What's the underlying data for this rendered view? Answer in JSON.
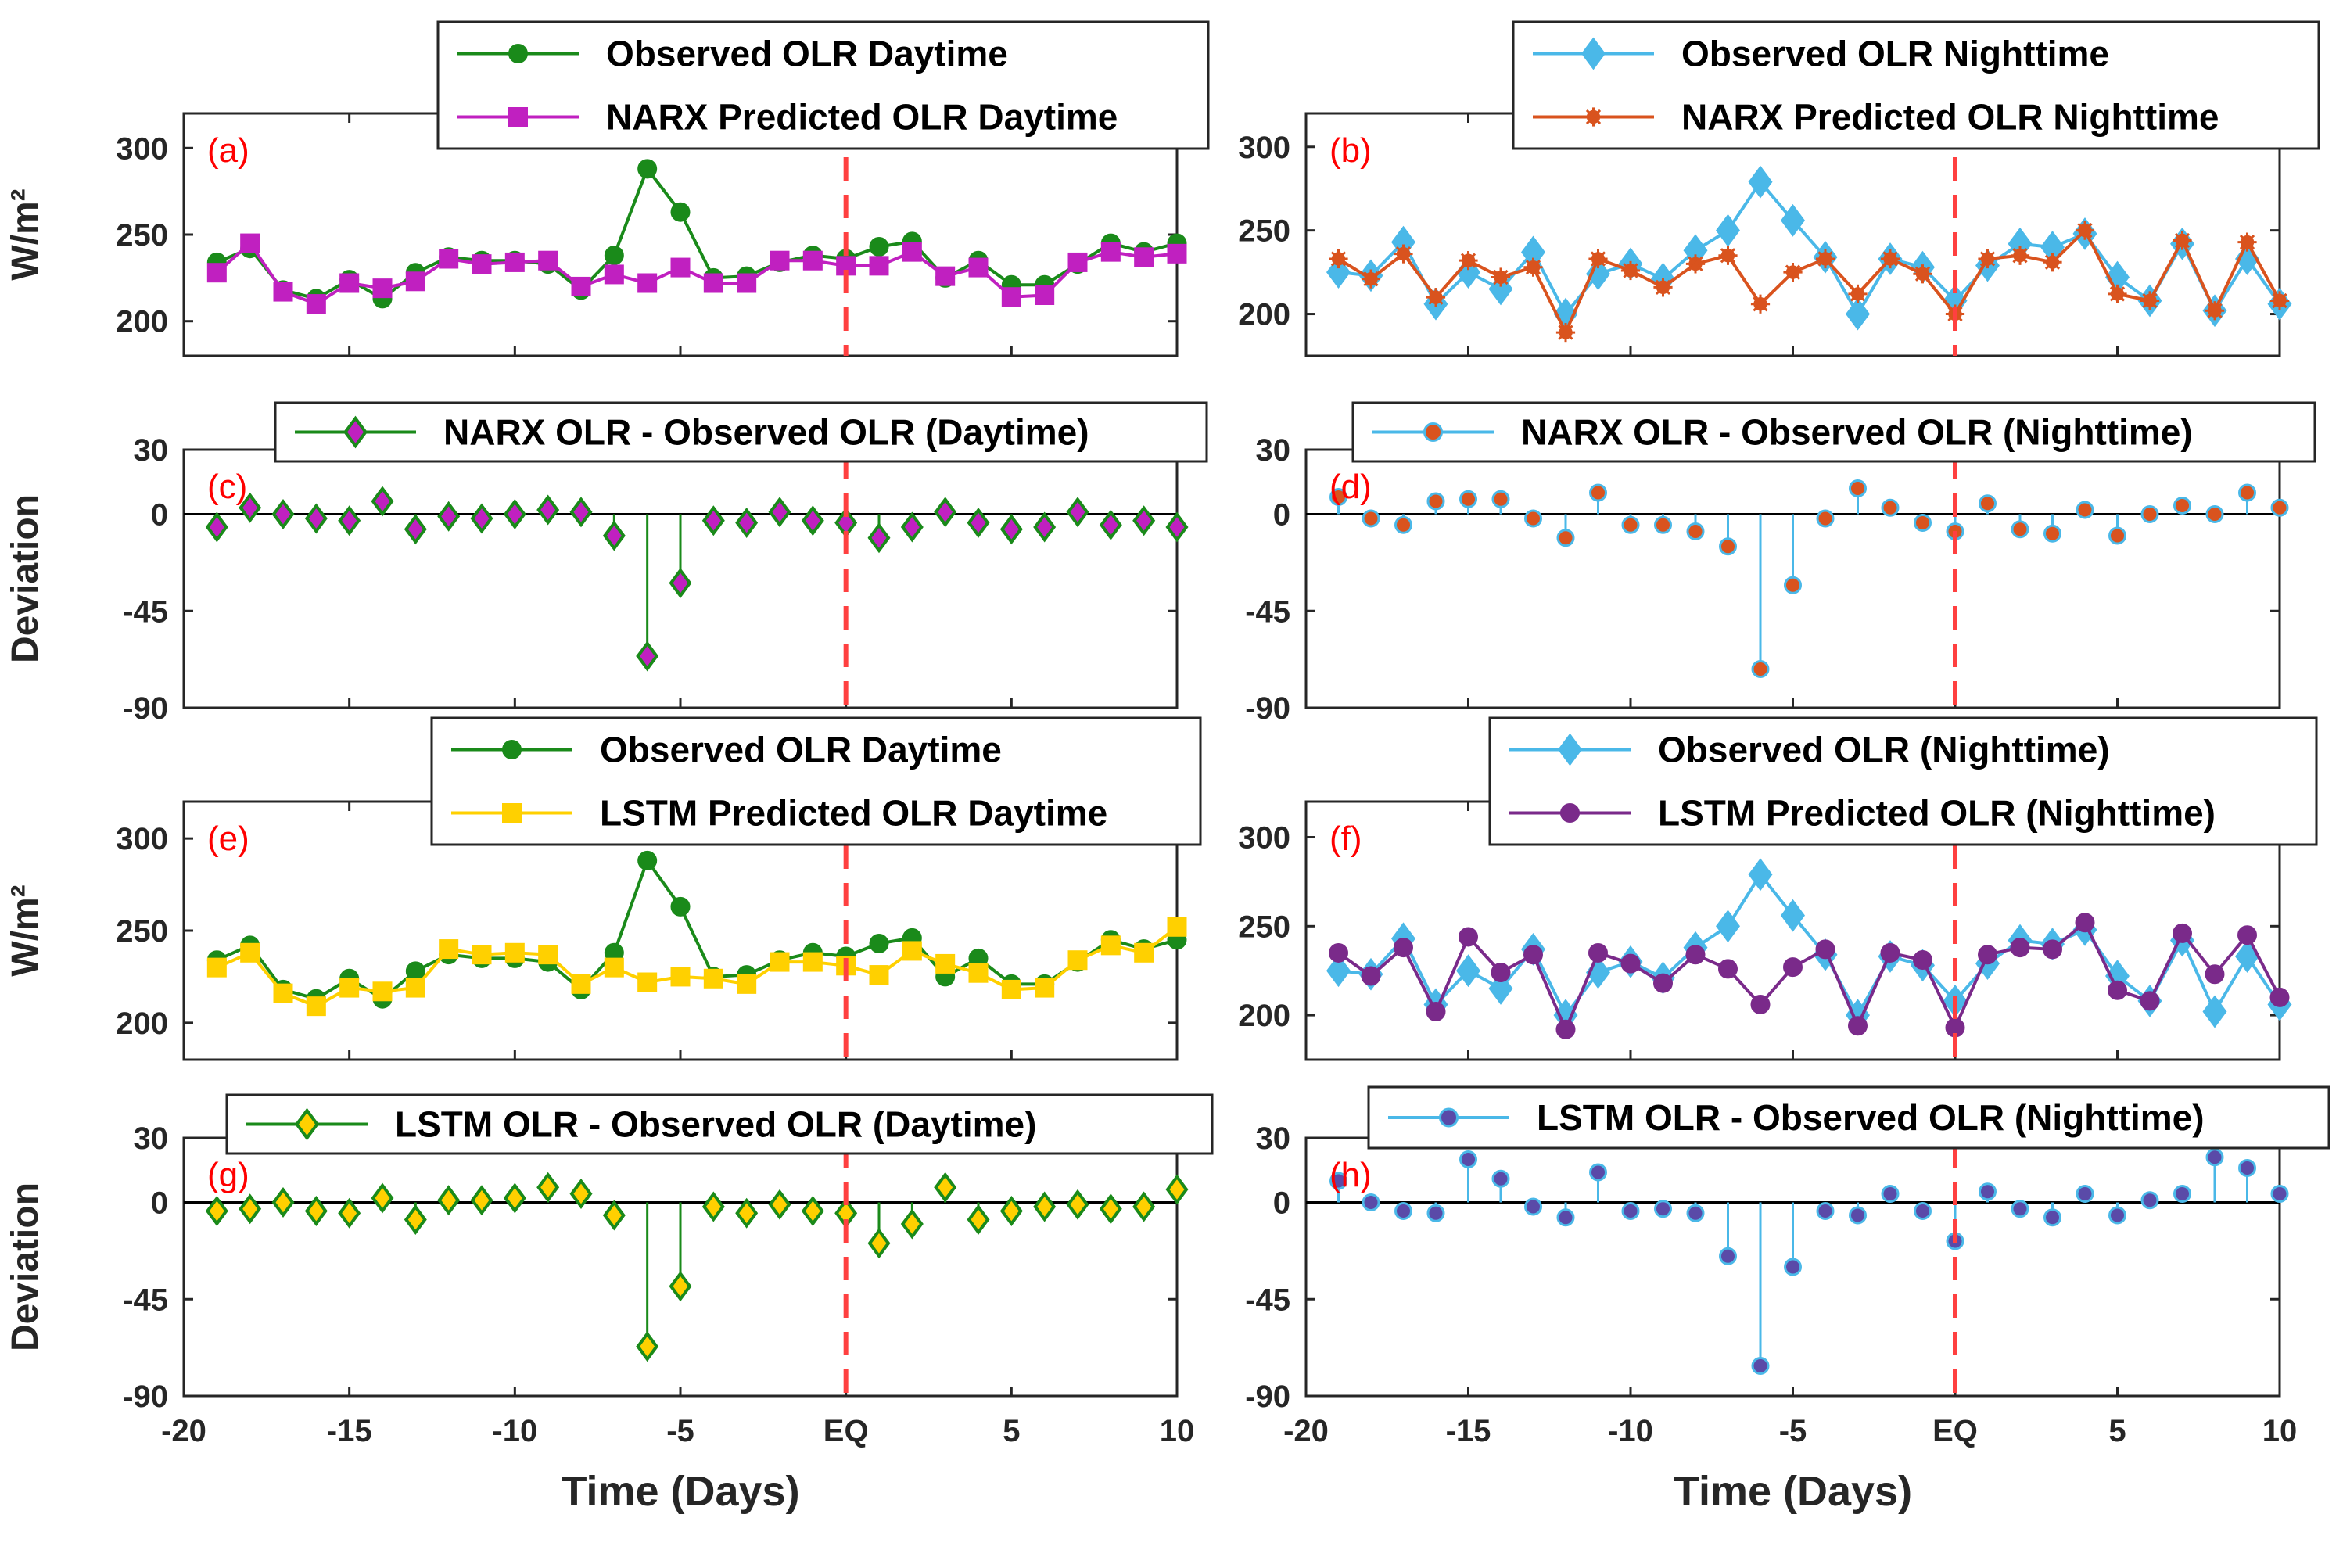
{
  "chart_data": [
    {
      "id": "a",
      "type": "line",
      "panel_label": "(a)",
      "ylabel": "W/m²",
      "ylim": [
        180,
        320
      ],
      "yticks": [
        {
          "v": 300,
          "t": "300"
        },
        {
          "v": 250,
          "t": "250"
        },
        {
          "v": 200,
          "t": "200"
        }
      ],
      "show_xticks": false,
      "series": [
        {
          "name": "Observed OLR Daytime",
          "color": "#1a8a1a",
          "marker": "circle",
          "x": [
            -19,
            -18,
            -17,
            -16,
            -15,
            -14,
            -13,
            -12,
            -11,
            -10,
            -9,
            -8,
            -7,
            -6,
            -5,
            -4,
            -3,
            -2,
            -1,
            0,
            1,
            2,
            3,
            4,
            5,
            6,
            7,
            8,
            9,
            10
          ],
          "values": [
            234,
            242,
            218,
            213,
            224,
            213,
            228,
            237,
            235,
            235,
            233,
            218,
            238,
            288,
            263,
            225,
            226,
            234,
            238,
            236,
            243,
            246,
            225,
            235,
            221,
            221,
            233,
            245,
            240,
            245
          ]
        },
        {
          "name": "NARX Predicted OLR Daytime",
          "color": "#c020c0",
          "marker": "square",
          "x": [
            -19,
            -18,
            -17,
            -16,
            -15,
            -14,
            -13,
            -12,
            -11,
            -10,
            -9,
            -8,
            -7,
            -6,
            -5,
            -4,
            -3,
            -2,
            -1,
            0,
            1,
            2,
            3,
            4,
            5,
            6,
            7,
            8,
            9,
            10
          ],
          "values": [
            228,
            245,
            217,
            210,
            222,
            219,
            223,
            236,
            233,
            234,
            235,
            220,
            227,
            222,
            231,
            222,
            222,
            235,
            235,
            232,
            232,
            240,
            226,
            231,
            214,
            215,
            234,
            240,
            237,
            239
          ]
        }
      ]
    },
    {
      "id": "b",
      "type": "line",
      "panel_label": "(b)",
      "ylabel": "",
      "ylim": [
        175,
        320
      ],
      "yticks": [
        {
          "v": 300,
          "t": "300"
        },
        {
          "v": 250,
          "t": "250"
        },
        {
          "v": 200,
          "t": "200"
        }
      ],
      "show_xticks": false,
      "series": [
        {
          "name": "Observed OLR Nighttime",
          "color": "#4ab8e8",
          "marker": "diamond",
          "x": [
            -19,
            -18,
            -17,
            -16,
            -15,
            -14,
            -13,
            -12,
            -11,
            -10,
            -9,
            -8,
            -7,
            -6,
            -5,
            -4,
            -3,
            -2,
            -1,
            0,
            1,
            2,
            3,
            4,
            5,
            6,
            7,
            8,
            9,
            10
          ],
          "values": [
            225,
            223,
            243,
            206,
            225,
            215,
            237,
            200,
            224,
            230,
            221,
            238,
            250,
            279,
            256,
            234,
            200,
            233,
            228,
            208,
            229,
            242,
            240,
            248,
            222,
            208,
            242,
            202,
            233,
            206
          ]
        },
        {
          "name": "NARX Predicted OLR Nighttime",
          "color": "#d9531e",
          "marker": "asterisk",
          "x": [
            -19,
            -18,
            -17,
            -16,
            -15,
            -14,
            -13,
            -12,
            -11,
            -10,
            -9,
            -8,
            -7,
            -6,
            -5,
            -4,
            -3,
            -2,
            -1,
            0,
            1,
            2,
            3,
            4,
            5,
            6,
            7,
            8,
            9,
            10
          ],
          "values": [
            233,
            221,
            236,
            210,
            232,
            222,
            228,
            189,
            233,
            226,
            216,
            230,
            235,
            206,
            225,
            233,
            212,
            233,
            224,
            200,
            233,
            235,
            231,
            250,
            212,
            208,
            244,
            202,
            243,
            208
          ]
        }
      ]
    },
    {
      "id": "c",
      "type": "stem",
      "panel_label": "(c)",
      "ylabel": "Deviation",
      "ylim": [
        -90,
        30
      ],
      "yticks": [
        {
          "v": 30,
          "t": "30"
        },
        {
          "v": 0,
          "t": "0"
        },
        {
          "v": -45,
          "t": "-45"
        },
        {
          "v": -90,
          "t": "-90"
        }
      ],
      "show_xticks": false,
      "series": [
        {
          "name": "NARX OLR - Observed OLR (Daytime)",
          "color": "#1a8a1a",
          "marker": "diamond",
          "fill": "#c020c0",
          "x": [
            -19,
            -18,
            -17,
            -16,
            -15,
            -14,
            -13,
            -12,
            -11,
            -10,
            -9,
            -8,
            -7,
            -6,
            -5,
            -4,
            -3,
            -2,
            -1,
            0,
            1,
            2,
            3,
            4,
            5,
            6,
            7,
            8,
            9,
            10
          ],
          "values": [
            -6,
            3,
            0,
            -2,
            -3,
            6,
            -7,
            -1,
            -2,
            0,
            2,
            1,
            -10,
            -66,
            -32,
            -3,
            -4,
            1,
            -3,
            -4,
            -11,
            -6,
            1,
            -4,
            -7,
            -6,
            1,
            -5,
            -3,
            -6
          ]
        }
      ]
    },
    {
      "id": "d",
      "type": "stem",
      "panel_label": "(d)",
      "ylabel": "",
      "ylim": [
        -90,
        30
      ],
      "yticks": [
        {
          "v": 30,
          "t": "30"
        },
        {
          "v": 0,
          "t": "0"
        },
        {
          "v": -45,
          "t": "-45"
        },
        {
          "v": -90,
          "t": "-90"
        }
      ],
      "show_xticks": false,
      "series": [
        {
          "name": "NARX OLR - Observed OLR (Nighttime)",
          "color": "#4ab8e8",
          "marker": "circle",
          "fill": "#d9531e",
          "x": [
            -19,
            -18,
            -17,
            -16,
            -15,
            -14,
            -13,
            -12,
            -11,
            -10,
            -9,
            -8,
            -7,
            -6,
            -5,
            -4,
            -3,
            -2,
            -1,
            0,
            1,
            2,
            3,
            4,
            5,
            6,
            7,
            8,
            9,
            10
          ],
          "values": [
            8,
            -2,
            -5,
            6,
            7,
            7,
            -2,
            -11,
            10,
            -5,
            -5,
            -8,
            -15,
            -72,
            -33,
            -2,
            12,
            3,
            -4,
            -8,
            5,
            -7,
            -9,
            2,
            -10,
            0,
            4,
            0,
            10,
            3
          ]
        }
      ]
    },
    {
      "id": "e",
      "type": "line",
      "panel_label": "(e)",
      "ylabel": "W/m²",
      "ylim": [
        180,
        320
      ],
      "yticks": [
        {
          "v": 300,
          "t": "300"
        },
        {
          "v": 250,
          "t": "250"
        },
        {
          "v": 200,
          "t": "200"
        }
      ],
      "show_xticks": false,
      "series": [
        {
          "name": "Observed OLR Daytime",
          "color": "#1a8a1a",
          "marker": "circle",
          "x": [
            -19,
            -18,
            -17,
            -16,
            -15,
            -14,
            -13,
            -12,
            -11,
            -10,
            -9,
            -8,
            -7,
            -6,
            -5,
            -4,
            -3,
            -2,
            -1,
            0,
            1,
            2,
            3,
            4,
            5,
            6,
            7,
            8,
            9,
            10
          ],
          "values": [
            234,
            242,
            218,
            213,
            224,
            213,
            228,
            237,
            235,
            235,
            233,
            218,
            238,
            288,
            263,
            225,
            226,
            234,
            238,
            236,
            243,
            246,
            225,
            235,
            221,
            221,
            233,
            245,
            240,
            245
          ]
        },
        {
          "name": "LSTM Predicted OLR Daytime",
          "color": "#ffd000",
          "marker": "square",
          "x": [
            -19,
            -18,
            -17,
            -16,
            -15,
            -14,
            -13,
            -12,
            -11,
            -10,
            -9,
            -8,
            -7,
            -6,
            -5,
            -4,
            -3,
            -2,
            -1,
            0,
            1,
            2,
            3,
            4,
            5,
            6,
            7,
            8,
            9,
            10
          ],
          "values": [
            230,
            238,
            216,
            209,
            219,
            217,
            219,
            240,
            237,
            238,
            237,
            221,
            230,
            222,
            225,
            224,
            221,
            233,
            233,
            231,
            226,
            239,
            232,
            227,
            218,
            219,
            234,
            242,
            238,
            252
          ]
        }
      ]
    },
    {
      "id": "f",
      "type": "line",
      "panel_label": "(f)",
      "ylabel": "",
      "ylim": [
        175,
        320
      ],
      "yticks": [
        {
          "v": 300,
          "t": "300"
        },
        {
          "v": 250,
          "t": "250"
        },
        {
          "v": 200,
          "t": "200"
        }
      ],
      "show_xticks": false,
      "series": [
        {
          "name": "Observed OLR (Nighttime)",
          "color": "#4ab8e8",
          "marker": "diamond",
          "x": [
            -19,
            -18,
            -17,
            -16,
            -15,
            -14,
            -13,
            -12,
            -11,
            -10,
            -9,
            -8,
            -7,
            -6,
            -5,
            -4,
            -3,
            -2,
            -1,
            0,
            1,
            2,
            3,
            4,
            5,
            6,
            7,
            8,
            9,
            10
          ],
          "values": [
            225,
            223,
            243,
            206,
            225,
            215,
            237,
            200,
            224,
            230,
            221,
            238,
            250,
            279,
            256,
            234,
            200,
            233,
            228,
            208,
            229,
            242,
            240,
            248,
            222,
            208,
            242,
            202,
            233,
            206
          ]
        },
        {
          "name": "LSTM Predicted OLR (Nighttime)",
          "color": "#7a2a8a",
          "marker": "circle",
          "x": [
            -19,
            -18,
            -17,
            -16,
            -15,
            -14,
            -13,
            -12,
            -11,
            -10,
            -9,
            -8,
            -7,
            -6,
            -5,
            -4,
            -3,
            -2,
            -1,
            0,
            1,
            2,
            3,
            4,
            5,
            6,
            7,
            8,
            9,
            10
          ],
          "values": [
            235,
            222,
            238,
            202,
            244,
            224,
            234,
            192,
            235,
            229,
            218,
            234,
            226,
            206,
            227,
            237,
            194,
            235,
            231,
            193,
            234,
            238,
            237,
            252,
            214,
            208,
            246,
            223,
            245,
            210
          ]
        }
      ]
    },
    {
      "id": "g",
      "type": "stem",
      "panel_label": "(g)",
      "ylabel": "Deviation",
      "ylim": [
        -90,
        30
      ],
      "yticks": [
        {
          "v": 30,
          "t": "30"
        },
        {
          "v": 0,
          "t": "0"
        },
        {
          "v": -45,
          "t": "-45"
        },
        {
          "v": -90,
          "t": "-90"
        }
      ],
      "show_xticks": true,
      "xlabel": "Time (Days)",
      "xticks": [
        {
          "v": -20,
          "t": "-20"
        },
        {
          "v": -15,
          "t": "-15"
        },
        {
          "v": -10,
          "t": "-10"
        },
        {
          "v": -5,
          "t": "-5"
        },
        {
          "v": 0,
          "t": "EQ"
        },
        {
          "v": 5,
          "t": "5"
        },
        {
          "v": 10,
          "t": "10"
        }
      ],
      "series": [
        {
          "name": "LSTM OLR - Observed OLR (Daytime)",
          "color": "#1a8a1a",
          "marker": "diamond",
          "fill": "#ffd000",
          "x": [
            -19,
            -18,
            -17,
            -16,
            -15,
            -14,
            -13,
            -12,
            -11,
            -10,
            -9,
            -8,
            -7,
            -6,
            -5,
            -4,
            -3,
            -2,
            -1,
            0,
            1,
            2,
            3,
            4,
            5,
            6,
            7,
            8,
            9,
            10
          ],
          "values": [
            -4,
            -3,
            0,
            -4,
            -5,
            2,
            -8,
            1,
            1,
            2,
            7,
            4,
            -6,
            -67,
            -39,
            -2,
            -5,
            -1,
            -4,
            -5,
            -19,
            -10,
            7,
            -8,
            -4,
            -2,
            -1,
            -3,
            -2,
            6
          ]
        }
      ]
    },
    {
      "id": "h",
      "type": "stem",
      "panel_label": "(h)",
      "ylabel": "",
      "ylim": [
        -90,
        30
      ],
      "yticks": [
        {
          "v": 30,
          "t": "30"
        },
        {
          "v": 0,
          "t": "0"
        },
        {
          "v": -45,
          "t": "-45"
        },
        {
          "v": -90,
          "t": "-90"
        }
      ],
      "show_xticks": true,
      "xlabel": "Time (Days)",
      "xticks": [
        {
          "v": -20,
          "t": "-20"
        },
        {
          "v": -15,
          "t": "-15"
        },
        {
          "v": -10,
          "t": "-10"
        },
        {
          "v": -5,
          "t": "-5"
        },
        {
          "v": 0,
          "t": "EQ"
        },
        {
          "v": 5,
          "t": "5"
        },
        {
          "v": 10,
          "t": "10"
        }
      ],
      "series": [
        {
          "name": "LSTM OLR - Observed OLR (Nighttime)",
          "color": "#4ab8e8",
          "marker": "circle",
          "fill": "#5a4aa8",
          "x": [
            -19,
            -18,
            -17,
            -16,
            -15,
            -14,
            -13,
            -12,
            -11,
            -10,
            -9,
            -8,
            -7,
            -6,
            -5,
            -4,
            -3,
            -2,
            -1,
            0,
            1,
            2,
            3,
            4,
            5,
            6,
            7,
            8,
            9,
            10
          ],
          "values": [
            10,
            0,
            -4,
            -5,
            20,
            11,
            -2,
            -7,
            14,
            -4,
            -3,
            -5,
            -25,
            -76,
            -30,
            -4,
            -6,
            4,
            -4,
            -18,
            5,
            -3,
            -7,
            4,
            -6,
            1,
            4,
            21,
            16,
            4
          ]
        }
      ]
    }
  ],
  "event_marker": {
    "x": 0,
    "color": "#ff4040"
  },
  "xlim": [
    -20,
    10
  ]
}
